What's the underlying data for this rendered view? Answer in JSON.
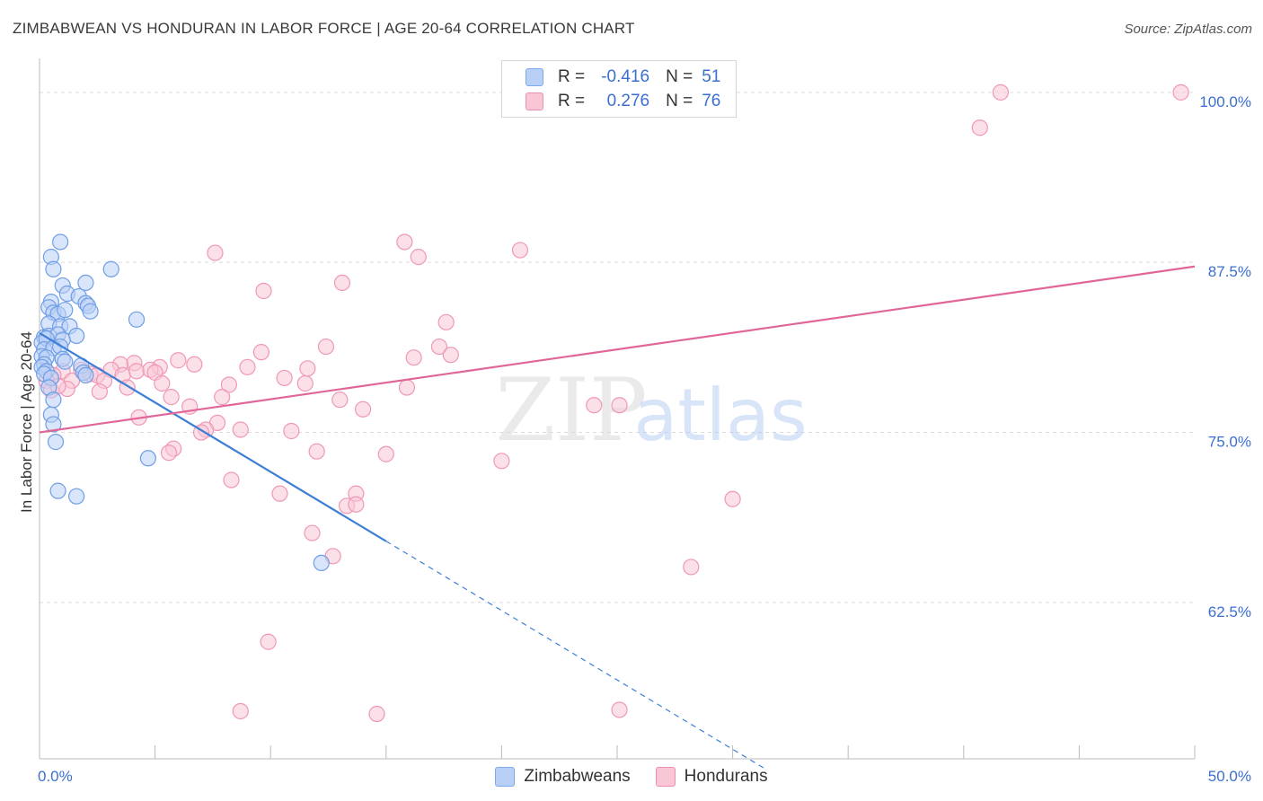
{
  "header": {
    "title": "ZIMBABWEAN VS HONDURAN IN LABOR FORCE | AGE 20-64 CORRELATION CHART",
    "source": "Source: ZipAtlas.com"
  },
  "watermark": {
    "zip": "ZIP",
    "atlas": "atlas"
  },
  "legend": {
    "r_label": "R =",
    "n_label": "N =",
    "rows": [
      {
        "name": "Zimbabweans",
        "r": "-0.416",
        "n": "51",
        "color": "#7fa9ee",
        "fill": "#b9d0f6"
      },
      {
        "name": "Hondurans",
        "r": "0.276",
        "n": "76",
        "color": "#ef8fae",
        "fill": "#f9c6d6"
      }
    ]
  },
  "chart_data": {
    "type": "scatter",
    "title": "ZIMBABWEAN VS HONDURAN IN LABOR FORCE | AGE 20-64 CORRELATION CHART",
    "xlabel": "",
    "ylabel": "In Labor Force | Age 20-64",
    "xlim": [
      0,
      50
    ],
    "ylim": [
      51.0,
      102.5
    ],
    "x_tick_labels": [
      "0.0%",
      "50.0%"
    ],
    "y_ticks": [
      62.5,
      75.0,
      87.5,
      100.0
    ],
    "y_tick_labels": [
      "62.5%",
      "75.0%",
      "87.5%",
      "100.0%"
    ],
    "grid": true,
    "legend_position": "top-center",
    "series": [
      {
        "name": "Zimbabweans",
        "color": "#3d7fd6",
        "marker_fill": "#b9d0f6",
        "marker_edge": "#6f9ee6",
        "trend": {
          "x0": 0.0,
          "y0": 82.3,
          "x1": 15.0,
          "y1": 67.0,
          "dash_to_x": 31.5
        },
        "points": [
          {
            "x": 0.9,
            "y": 89.0
          },
          {
            "x": 0.5,
            "y": 87.9
          },
          {
            "x": 0.6,
            "y": 87.0
          },
          {
            "x": 3.1,
            "y": 87.0
          },
          {
            "x": 2.0,
            "y": 86.0
          },
          {
            "x": 1.0,
            "y": 85.8
          },
          {
            "x": 1.2,
            "y": 85.2
          },
          {
            "x": 1.7,
            "y": 85.0
          },
          {
            "x": 0.5,
            "y": 84.6
          },
          {
            "x": 0.4,
            "y": 84.2
          },
          {
            "x": 2.0,
            "y": 84.5
          },
          {
            "x": 2.1,
            "y": 84.3
          },
          {
            "x": 0.6,
            "y": 83.8
          },
          {
            "x": 0.8,
            "y": 83.7
          },
          {
            "x": 1.1,
            "y": 84.0
          },
          {
            "x": 2.2,
            "y": 83.9
          },
          {
            "x": 4.2,
            "y": 83.3
          },
          {
            "x": 0.4,
            "y": 83.0
          },
          {
            "x": 0.9,
            "y": 82.8
          },
          {
            "x": 1.3,
            "y": 82.8
          },
          {
            "x": 0.2,
            "y": 82.0
          },
          {
            "x": 0.4,
            "y": 82.1
          },
          {
            "x": 0.8,
            "y": 82.2
          },
          {
            "x": 1.6,
            "y": 82.1
          },
          {
            "x": 0.1,
            "y": 81.6
          },
          {
            "x": 0.3,
            "y": 81.9
          },
          {
            "x": 1.0,
            "y": 81.8
          },
          {
            "x": 0.2,
            "y": 81.1
          },
          {
            "x": 0.6,
            "y": 81.2
          },
          {
            "x": 0.9,
            "y": 81.3
          },
          {
            "x": 0.1,
            "y": 80.6
          },
          {
            "x": 0.3,
            "y": 80.5
          },
          {
            "x": 1.0,
            "y": 80.4
          },
          {
            "x": 1.1,
            "y": 80.2
          },
          {
            "x": 0.2,
            "y": 80.0
          },
          {
            "x": 0.1,
            "y": 79.8
          },
          {
            "x": 1.8,
            "y": 79.9
          },
          {
            "x": 0.3,
            "y": 79.5
          },
          {
            "x": 0.2,
            "y": 79.3
          },
          {
            "x": 0.5,
            "y": 79.0
          },
          {
            "x": 1.9,
            "y": 79.4
          },
          {
            "x": 2.0,
            "y": 79.2
          },
          {
            "x": 0.4,
            "y": 78.3
          },
          {
            "x": 0.6,
            "y": 77.4
          },
          {
            "x": 0.5,
            "y": 76.3
          },
          {
            "x": 0.6,
            "y": 75.6
          },
          {
            "x": 0.7,
            "y": 74.3
          },
          {
            "x": 4.7,
            "y": 73.1
          },
          {
            "x": 0.8,
            "y": 70.7
          },
          {
            "x": 1.6,
            "y": 70.3
          },
          {
            "x": 12.2,
            "y": 65.4
          }
        ]
      },
      {
        "name": "Hondurans",
        "color": "#e0669a",
        "marker_fill": "#f9c6d6",
        "marker_edge": "#ef98b6",
        "trend": {
          "x0": 0.0,
          "y0": 75.0,
          "x1": 50.0,
          "y1": 87.2
        },
        "points": [
          {
            "x": 41.6,
            "y": 100.0
          },
          {
            "x": 49.4,
            "y": 100.0
          },
          {
            "x": 40.7,
            "y": 97.4
          },
          {
            "x": 15.8,
            "y": 89.0
          },
          {
            "x": 7.6,
            "y": 88.2
          },
          {
            "x": 16.4,
            "y": 87.9
          },
          {
            "x": 20.8,
            "y": 88.4
          },
          {
            "x": 13.1,
            "y": 86.0
          },
          {
            "x": 9.7,
            "y": 85.4
          },
          {
            "x": 17.6,
            "y": 83.1
          },
          {
            "x": 12.4,
            "y": 81.3
          },
          {
            "x": 17.3,
            "y": 81.3
          },
          {
            "x": 9.6,
            "y": 80.9
          },
          {
            "x": 16.2,
            "y": 80.5
          },
          {
            "x": 17.8,
            "y": 80.7
          },
          {
            "x": 6.0,
            "y": 80.3
          },
          {
            "x": 6.7,
            "y": 80.0
          },
          {
            "x": 4.1,
            "y": 80.1
          },
          {
            "x": 3.5,
            "y": 80.0
          },
          {
            "x": 5.2,
            "y": 79.8
          },
          {
            "x": 9.0,
            "y": 79.8
          },
          {
            "x": 11.6,
            "y": 79.7
          },
          {
            "x": 3.1,
            "y": 79.6
          },
          {
            "x": 4.2,
            "y": 79.5
          },
          {
            "x": 4.8,
            "y": 79.6
          },
          {
            "x": 5.0,
            "y": 79.4
          },
          {
            "x": 1.8,
            "y": 79.6
          },
          {
            "x": 2.2,
            "y": 79.3
          },
          {
            "x": 2.5,
            "y": 79.2
          },
          {
            "x": 3.6,
            "y": 79.2
          },
          {
            "x": 1.0,
            "y": 79.5
          },
          {
            "x": 0.6,
            "y": 79.2
          },
          {
            "x": 0.3,
            "y": 78.8
          },
          {
            "x": 1.4,
            "y": 78.8
          },
          {
            "x": 2.8,
            "y": 78.8
          },
          {
            "x": 10.6,
            "y": 79.0
          },
          {
            "x": 11.5,
            "y": 78.6
          },
          {
            "x": 5.3,
            "y": 78.6
          },
          {
            "x": 8.2,
            "y": 78.5
          },
          {
            "x": 3.8,
            "y": 78.3
          },
          {
            "x": 0.5,
            "y": 78.1
          },
          {
            "x": 1.2,
            "y": 78.2
          },
          {
            "x": 2.6,
            "y": 78.0
          },
          {
            "x": 0.8,
            "y": 78.4
          },
          {
            "x": 15.9,
            "y": 78.3
          },
          {
            "x": 7.9,
            "y": 77.6
          },
          {
            "x": 5.7,
            "y": 77.6
          },
          {
            "x": 13.0,
            "y": 77.4
          },
          {
            "x": 6.5,
            "y": 76.9
          },
          {
            "x": 14.0,
            "y": 76.7
          },
          {
            "x": 24.0,
            "y": 77.0
          },
          {
            "x": 25.1,
            "y": 77.0
          },
          {
            "x": 4.3,
            "y": 76.1
          },
          {
            "x": 7.7,
            "y": 75.7
          },
          {
            "x": 7.2,
            "y": 75.2
          },
          {
            "x": 7.0,
            "y": 75.0
          },
          {
            "x": 8.7,
            "y": 75.2
          },
          {
            "x": 10.9,
            "y": 75.1
          },
          {
            "x": 5.8,
            "y": 73.8
          },
          {
            "x": 5.6,
            "y": 73.5
          },
          {
            "x": 12.0,
            "y": 73.6
          },
          {
            "x": 15.0,
            "y": 73.4
          },
          {
            "x": 20.0,
            "y": 72.9
          },
          {
            "x": 8.3,
            "y": 71.5
          },
          {
            "x": 10.4,
            "y": 70.5
          },
          {
            "x": 13.7,
            "y": 70.5
          },
          {
            "x": 13.3,
            "y": 69.6
          },
          {
            "x": 13.7,
            "y": 69.7
          },
          {
            "x": 30.0,
            "y": 70.1
          },
          {
            "x": 11.8,
            "y": 67.6
          },
          {
            "x": 12.7,
            "y": 65.9
          },
          {
            "x": 28.2,
            "y": 65.1
          },
          {
            "x": 9.9,
            "y": 59.6
          },
          {
            "x": 8.7,
            "y": 54.5
          },
          {
            "x": 14.6,
            "y": 54.3
          },
          {
            "x": 25.1,
            "y": 54.6
          }
        ]
      }
    ]
  }
}
